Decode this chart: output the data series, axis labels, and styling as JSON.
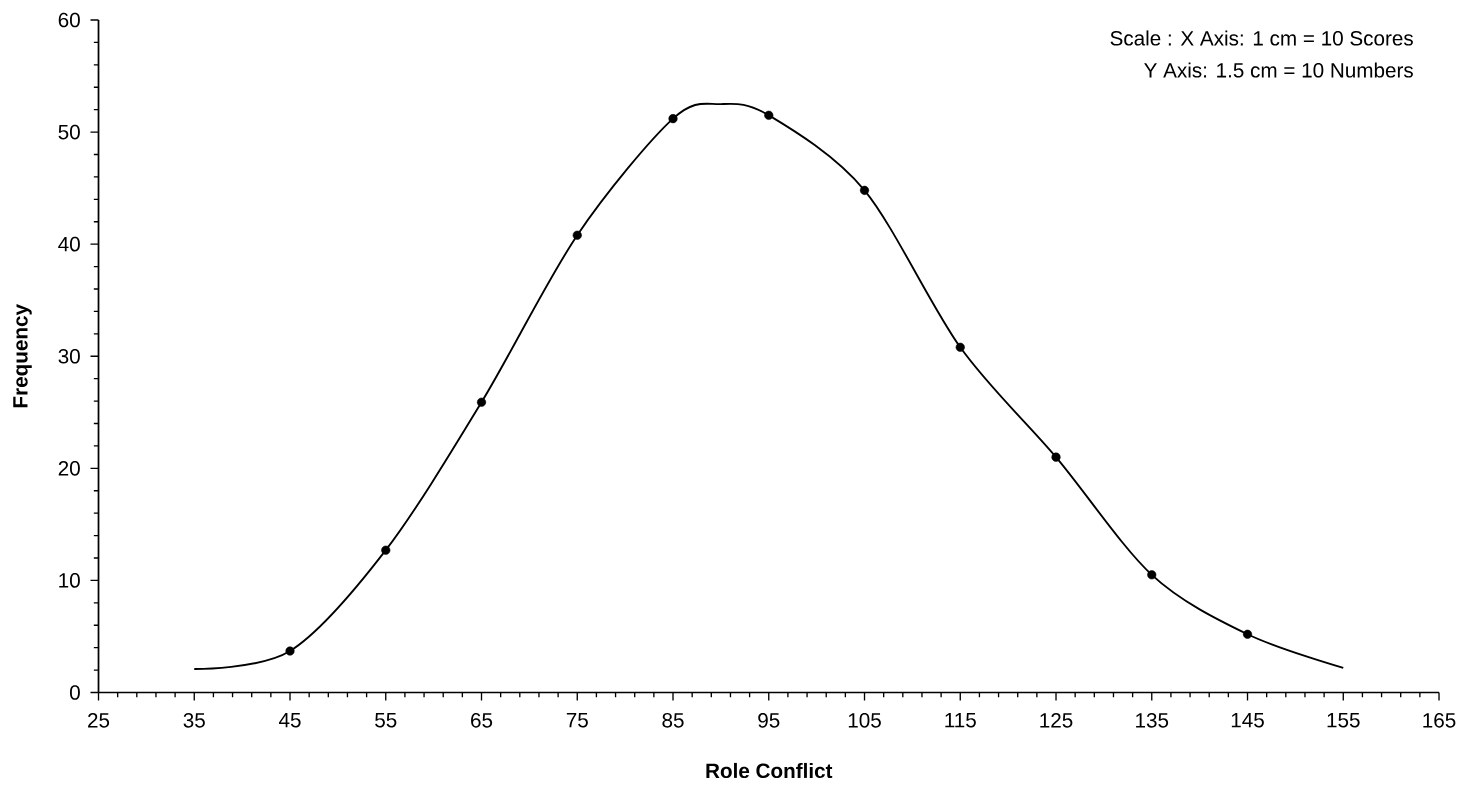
{
  "chart_data": {
    "type": "line",
    "xlabel": "Role Conflict",
    "ylabel": "Frequency",
    "annotations": [
      "Scale : X Axis: 1 cm    = 10 Scores",
      "Y Axis: 1.5 cm =  10 Numbers"
    ],
    "xlim": [
      25,
      165
    ],
    "xticks": [
      25,
      35,
      45,
      55,
      65,
      75,
      85,
      95,
      105,
      115,
      125,
      135,
      145,
      155,
      165
    ],
    "ylim": [
      0,
      60
    ],
    "yticks": [
      0,
      10,
      20,
      30,
      40,
      50,
      60
    ],
    "grid": false,
    "line_style": "solid",
    "series": [
      {
        "color": "#000000",
        "marker": "none",
        "x": [
          35,
          45,
          55,
          65,
          75,
          85,
          90,
          95,
          105,
          115,
          125,
          135,
          145,
          155
        ],
        "values": [
          2.1,
          3.7,
          12.7,
          25.9,
          40.8,
          51.2,
          52.5,
          51.5,
          44.8,
          30.8,
          21.0,
          10.5,
          5.2,
          2.2
        ]
      },
      {
        "type": "scatter",
        "color": "#000000",
        "marker": "circle",
        "x": [
          45,
          55,
          65,
          75,
          85,
          95,
          105,
          115,
          125,
          135,
          145
        ],
        "values": [
          3.7,
          12.7,
          25.9,
          40.8,
          51.2,
          51.5,
          44.8,
          30.8,
          21.0,
          10.5,
          5.2
        ]
      }
    ]
  }
}
